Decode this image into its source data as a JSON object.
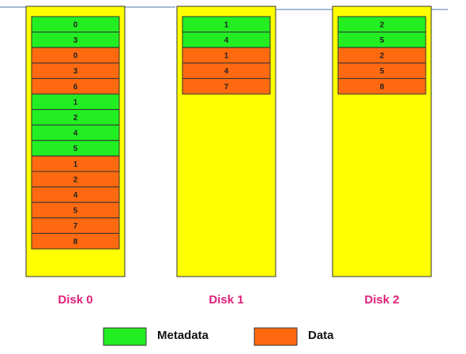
{
  "disks": [
    {
      "label": "Disk 0",
      "blocks": [
        {
          "text": "0",
          "color": "#22ee22"
        },
        {
          "text": "3",
          "color": "#22ee22"
        },
        {
          "text": "0",
          "color": "#ff6a10"
        },
        {
          "text": "3",
          "color": "#ff6a10"
        },
        {
          "text": "6",
          "color": "#ff6a10"
        },
        {
          "text": "1",
          "color": "#22ee22"
        },
        {
          "text": "2",
          "color": "#22ee22"
        },
        {
          "text": "4",
          "color": "#22ee22"
        },
        {
          "text": "5",
          "color": "#22ee22"
        },
        {
          "text": "1",
          "color": "#ff6a10"
        },
        {
          "text": "2",
          "color": "#ff6a10"
        },
        {
          "text": "4",
          "color": "#ff6a10"
        },
        {
          "text": "5",
          "color": "#ff6a10"
        },
        {
          "text": "7",
          "color": "#ff6a10"
        },
        {
          "text": "8",
          "color": "#ff6a10"
        }
      ]
    },
    {
      "label": "Disk 1",
      "blocks": [
        {
          "text": "1",
          "color": "#22ee22"
        },
        {
          "text": "4",
          "color": "#22ee22"
        },
        {
          "text": "1",
          "color": "#ff6a10"
        },
        {
          "text": "4",
          "color": "#ff6a10"
        },
        {
          "text": "7",
          "color": "#ff6a10"
        }
      ]
    },
    {
      "label": "Disk 2",
      "blocks": [
        {
          "text": "2",
          "color": "#22ee22"
        },
        {
          "text": "5",
          "color": "#22ee22"
        },
        {
          "text": "2",
          "color": "#ff6a10"
        },
        {
          "text": "5",
          "color": "#ff6a10"
        },
        {
          "text": "8",
          "color": "#ff6a10"
        }
      ]
    }
  ],
  "legend": [
    {
      "label": "Metadata",
      "color": "#22ee22"
    },
    {
      "label": "Data",
      "color": "#ff6a10"
    }
  ]
}
